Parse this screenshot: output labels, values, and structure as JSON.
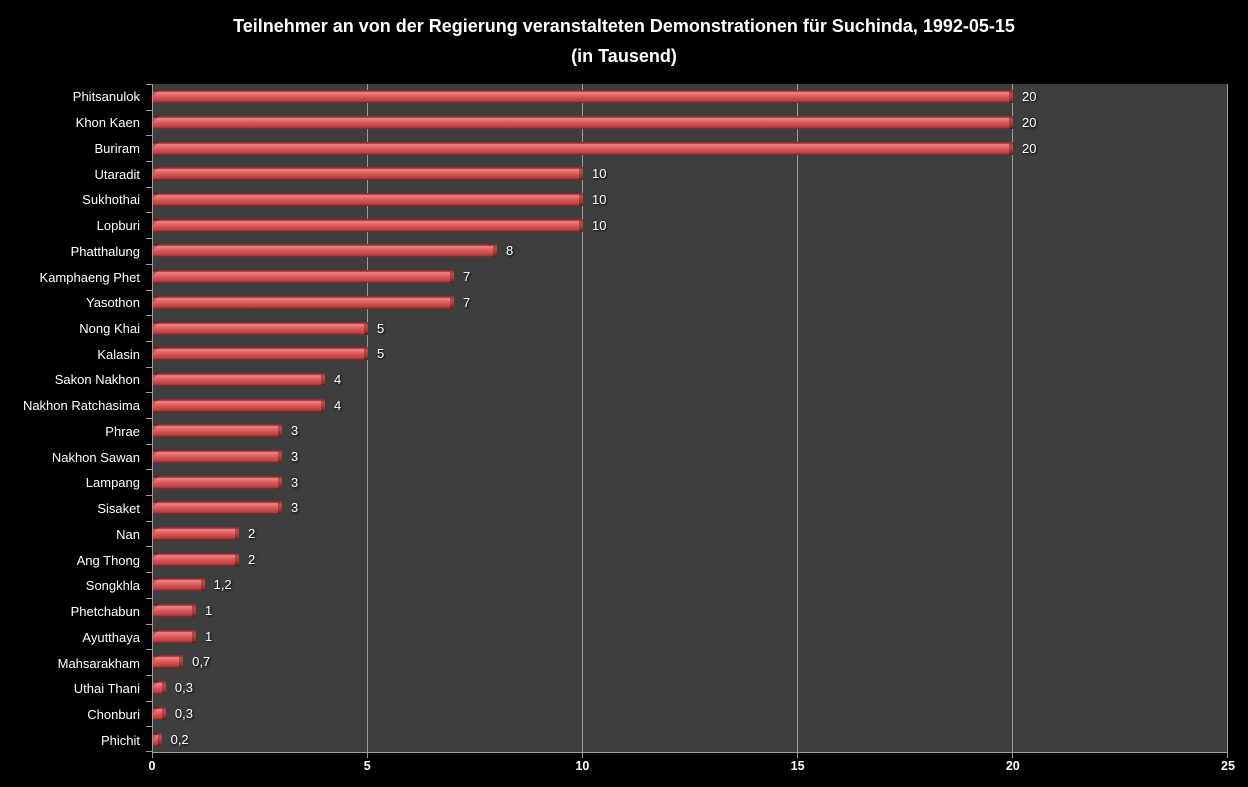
{
  "title": {
    "line1": "Teilnehmer an von der Regierung veranstalteten Demonstrationen für Suchinda, 1992-05-15",
    "line2": "(in Tausend)"
  },
  "chart_data": {
    "type": "bar",
    "orientation": "horizontal",
    "title": "Teilnehmer an von der Regierung veranstalteten Demonstrationen für Suchinda, 1992-05-15 (in Tausend)",
    "xlabel": "",
    "ylabel": "",
    "categories": [
      "Phitsanulok",
      "Khon Kaen",
      "Buriram",
      "Utaradit",
      "Sukhothai",
      "Lopburi",
      "Phatthalung",
      "Kamphaeng Phet",
      "Yasothon",
      "Nong Khai",
      "Kalasin",
      "Sakon Nakhon",
      "Nakhon Ratchasima",
      "Phrae",
      "Nakhon Sawan",
      "Lampang",
      "Sisaket",
      "Nan",
      "Ang Thong",
      "Songkhla",
      "Phetchabun",
      "Ayutthaya",
      "Mahsarakham",
      "Uthai Thani",
      "Chonburi",
      "Phichit"
    ],
    "values": [
      20,
      20,
      20,
      10,
      10,
      10,
      8,
      7,
      7,
      5,
      5,
      4,
      4,
      3,
      3,
      3,
      3,
      2,
      2,
      1.2,
      1,
      1,
      0.7,
      0.3,
      0.3,
      0.2
    ],
    "value_labels": [
      "20",
      "20",
      "20",
      "10",
      "10",
      "10",
      "8",
      "7",
      "7",
      "5",
      "5",
      "4",
      "4",
      "3",
      "3",
      "3",
      "3",
      "2",
      "2",
      "1,2",
      "1",
      "1",
      "0,7",
      "0,3",
      "0,3",
      "0,2"
    ],
    "xlim": [
      0,
      25
    ],
    "xticks": [
      0,
      5,
      10,
      15,
      20,
      25
    ],
    "grid": "vertical-gridlines-on",
    "legend": "none",
    "decimal_separator": ","
  },
  "colors": {
    "page_background": "#000000",
    "plot_background": "#3E3E3E",
    "bar_main": "#D45353",
    "bar_highlight": "#EF8787",
    "bar_shadow": "#6F1F1F",
    "gridline": "#9A9A9A",
    "axis_line": "#9E9E9E",
    "text": "#FFFFFF"
  }
}
